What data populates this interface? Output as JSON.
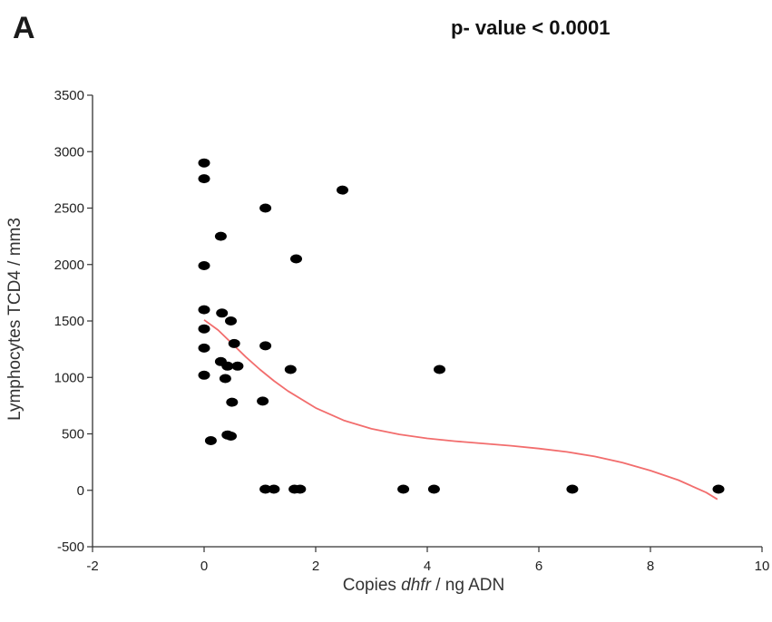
{
  "panel_label": "A",
  "annotation": "p- value < 0.0001",
  "chart_data": {
    "type": "scatter",
    "xlabel_parts": [
      "Copies ",
      "dhfr",
      " / ng ADN"
    ],
    "ylabel": "Lymphocytes TCD4 / mm3",
    "xlim": [
      -2,
      10
    ],
    "ylim": [
      -500,
      3500
    ],
    "xticks": [
      -2,
      0,
      2,
      4,
      6,
      8,
      10
    ],
    "yticks": [
      -500,
      0,
      500,
      1000,
      1500,
      2000,
      2500,
      3000,
      3500
    ],
    "grid": false,
    "point_color": "#000000",
    "curve_color": "#f26d6d",
    "points": [
      {
        "x": 0.0,
        "y": 2900
      },
      {
        "x": 0.0,
        "y": 2760
      },
      {
        "x": 0.0,
        "y": 1990
      },
      {
        "x": 0.0,
        "y": 1600
      },
      {
        "x": 0.0,
        "y": 1430
      },
      {
        "x": 0.0,
        "y": 1260
      },
      {
        "x": 0.0,
        "y": 1020
      },
      {
        "x": 0.12,
        "y": 440
      },
      {
        "x": 0.3,
        "y": 2250
      },
      {
        "x": 0.32,
        "y": 1570
      },
      {
        "x": 0.3,
        "y": 1140
      },
      {
        "x": 0.38,
        "y": 990
      },
      {
        "x": 0.42,
        "y": 1100
      },
      {
        "x": 0.42,
        "y": 490
      },
      {
        "x": 0.48,
        "y": 480
      },
      {
        "x": 0.48,
        "y": 1500
      },
      {
        "x": 0.5,
        "y": 780
      },
      {
        "x": 0.54,
        "y": 1300
      },
      {
        "x": 0.6,
        "y": 1100
      },
      {
        "x": 1.05,
        "y": 790
      },
      {
        "x": 1.1,
        "y": 1280
      },
      {
        "x": 1.1,
        "y": 2500
      },
      {
        "x": 1.1,
        "y": 10
      },
      {
        "x": 1.25,
        "y": 10
      },
      {
        "x": 1.55,
        "y": 1070
      },
      {
        "x": 1.62,
        "y": 10
      },
      {
        "x": 1.65,
        "y": 2050
      },
      {
        "x": 1.72,
        "y": 10
      },
      {
        "x": 2.48,
        "y": 2660
      },
      {
        "x": 3.57,
        "y": 10
      },
      {
        "x": 4.12,
        "y": 10
      },
      {
        "x": 4.22,
        "y": 1070
      },
      {
        "x": 6.6,
        "y": 10
      },
      {
        "x": 9.22,
        "y": 10
      }
    ],
    "trend_curve": [
      {
        "x": 0.0,
        "y": 1510
      },
      {
        "x": 0.25,
        "y": 1420
      },
      {
        "x": 0.5,
        "y": 1300
      },
      {
        "x": 0.75,
        "y": 1180
      },
      {
        "x": 1.0,
        "y": 1070
      },
      {
        "x": 1.25,
        "y": 970
      },
      {
        "x": 1.5,
        "y": 880
      },
      {
        "x": 2.0,
        "y": 730
      },
      {
        "x": 2.5,
        "y": 620
      },
      {
        "x": 3.0,
        "y": 545
      },
      {
        "x": 3.5,
        "y": 495
      },
      {
        "x": 4.0,
        "y": 460
      },
      {
        "x": 4.5,
        "y": 435
      },
      {
        "x": 5.0,
        "y": 415
      },
      {
        "x": 5.5,
        "y": 395
      },
      {
        "x": 6.0,
        "y": 370
      },
      {
        "x": 6.5,
        "y": 340
      },
      {
        "x": 7.0,
        "y": 300
      },
      {
        "x": 7.5,
        "y": 245
      },
      {
        "x": 8.0,
        "y": 175
      },
      {
        "x": 8.5,
        "y": 90
      },
      {
        "x": 9.0,
        "y": -20
      },
      {
        "x": 9.2,
        "y": -80
      }
    ]
  }
}
